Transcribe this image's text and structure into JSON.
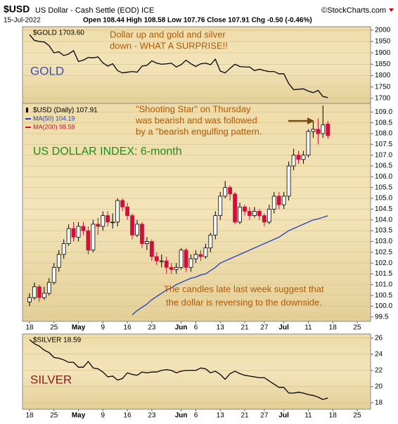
{
  "header": {
    "symbol": "$USD",
    "name": "US Dollar - Cash Settle (EOD) ICE",
    "source": "©StockCharts.com",
    "date": "15-Jul-2022",
    "quote": "Open 108.44 High 108.58 Low 107.76 Close 107.91 Chg -0.50 (-0.46%)"
  },
  "chart_data": [
    {
      "type": "line",
      "legend": "$GOLD 1703.60",
      "label": "GOLD",
      "annotation": [
        "Dollar up and gold and silver",
        "down - WHAT A SURPRISE!!"
      ],
      "color": "#000000",
      "values": [
        1980,
        1955,
        1950,
        1948,
        1932,
        1900,
        1905,
        1888,
        1895,
        1910,
        1862,
        1868,
        1880,
        1878,
        1882,
        1856,
        1842,
        1852,
        1822,
        1812,
        1815,
        1818,
        1815,
        1842,
        1845,
        1865,
        1855,
        1850,
        1852,
        1855,
        1838,
        1848,
        1868,
        1852,
        1840,
        1852,
        1855,
        1848,
        1872,
        1820,
        1812,
        1832,
        1850,
        1840,
        1838,
        1838,
        1822,
        1828,
        1822,
        1818,
        1818,
        1808,
        1808,
        1765,
        1738,
        1740,
        1742,
        1732,
        1725,
        1735,
        1708,
        1703.6,
        null,
        null,
        null,
        null,
        null,
        null,
        null,
        null
      ],
      "ylim": [
        1678,
        2015
      ],
      "yticks": [
        1700,
        1750,
        1800,
        1850,
        1900,
        1950,
        2000
      ],
      "grid": true
    },
    {
      "type": "candlestick",
      "title": "$USD (Daily) 107.91",
      "label": "US DOLLAR INDEX: 6-month",
      "annotation": [
        "\"Shooting Star\" on Thursday",
        "was bearish and was followed",
        "by a \"bearish engulfing pattern."
      ],
      "note": [
        "The candles late last week suggest that",
        "the dollar is reversing to the downside."
      ],
      "categories": [
        "18",
        null,
        null,
        null,
        null,
        "25",
        null,
        null,
        null,
        null,
        "May",
        null,
        null,
        null,
        null,
        "9",
        null,
        null,
        null,
        null,
        "16",
        null,
        null,
        null,
        null,
        "23",
        null,
        null,
        null,
        null,
        null,
        "Jun",
        null,
        null,
        "6",
        null,
        null,
        null,
        null,
        "13",
        null,
        null,
        null,
        null,
        "21",
        null,
        null,
        null,
        "27",
        null,
        null,
        null,
        "Jul",
        null,
        null,
        null,
        null,
        "11",
        null,
        null,
        null,
        null,
        "18",
        null,
        null,
        null,
        null,
        "25",
        null,
        null
      ],
      "open": [
        100.2,
        100.4,
        100.9,
        100.4,
        100.6,
        101.1,
        101.8,
        102.4,
        102.9,
        103.6,
        103.2,
        103.7,
        103.5,
        102.6,
        103.8,
        103.7,
        104.2,
        103.9,
        103.9,
        104.9,
        104.6,
        104.2,
        103.3,
        103.8,
        102.9,
        103.0,
        102.3,
        102.1,
        102.1,
        101.8,
        101.7,
        101.8,
        102.6,
        101.8,
        102.2,
        102.4,
        102.3,
        102.7,
        103.3,
        104.2,
        105.1,
        105.5,
        105.2,
        103.9,
        104.6,
        104.4,
        104.2,
        104.4,
        104.2,
        103.9,
        104.5,
        105.1,
        104.7,
        105.1,
        106.5,
        107.0,
        106.8,
        107.0,
        108.1,
        108.2,
        108.0,
        108.44,
        null,
        null,
        null,
        null,
        null,
        null,
        null,
        null
      ],
      "high": [
        100.6,
        101.1,
        101.0,
        100.9,
        101.3,
        102.0,
        102.6,
        103.1,
        103.8,
        103.9,
        103.9,
        103.9,
        103.7,
        104.0,
        104.1,
        104.4,
        104.4,
        104.3,
        105.0,
        105.0,
        104.8,
        104.3,
        104.0,
        103.9,
        103.2,
        103.1,
        102.5,
        102.4,
        102.3,
        102.0,
        102.0,
        102.7,
        102.7,
        102.4,
        102.6,
        102.6,
        102.9,
        103.4,
        104.4,
        105.3,
        105.8,
        105.6,
        105.3,
        104.8,
        104.7,
        104.6,
        104.6,
        104.5,
        104.3,
        104.7,
        105.3,
        105.3,
        105.3,
        106.7,
        107.3,
        107.2,
        107.2,
        108.2,
        108.6,
        108.7,
        109.3,
        108.58,
        null,
        null,
        null,
        null,
        null,
        null,
        null,
        null
      ],
      "low": [
        100.0,
        100.3,
        100.2,
        100.3,
        100.5,
        101.0,
        101.6,
        102.2,
        102.8,
        103.0,
        103.0,
        103.3,
        102.4,
        102.5,
        103.3,
        103.5,
        103.7,
        103.6,
        103.7,
        104.4,
        104.0,
        103.1,
        103.2,
        102.7,
        102.6,
        102.1,
        101.9,
        101.8,
        101.5,
        101.5,
        101.5,
        101.7,
        101.6,
        101.6,
        102.0,
        102.1,
        102.2,
        102.5,
        103.1,
        104.0,
        105.0,
        104.9,
        103.8,
        103.8,
        104.2,
        104.0,
        104.1,
        104.0,
        103.7,
        103.8,
        104.3,
        104.5,
        104.5,
        104.9,
        106.3,
        106.6,
        106.6,
        106.9,
        107.8,
        107.5,
        107.8,
        107.76,
        null,
        null,
        null,
        null,
        null,
        null,
        null,
        null
      ],
      "close": [
        100.4,
        100.9,
        100.4,
        100.6,
        101.1,
        101.8,
        102.4,
        102.9,
        103.6,
        103.2,
        103.7,
        103.5,
        102.6,
        103.8,
        103.7,
        104.2,
        103.9,
        103.9,
        104.9,
        104.6,
        104.2,
        103.3,
        103.8,
        102.9,
        103.0,
        102.3,
        102.1,
        102.1,
        101.8,
        101.7,
        101.8,
        102.6,
        101.8,
        102.2,
        102.4,
        102.3,
        102.7,
        103.3,
        104.2,
        105.1,
        105.5,
        105.2,
        103.9,
        104.6,
        104.4,
        104.2,
        104.4,
        104.2,
        103.9,
        104.5,
        105.1,
        104.7,
        105.1,
        106.5,
        107.0,
        106.8,
        107.0,
        108.1,
        108.2,
        108.0,
        108.4,
        107.91,
        null,
        null,
        null,
        null,
        null,
        null,
        null,
        null
      ],
      "up_color": "#ffffff",
      "down_color": "#d0103a",
      "series": [
        {
          "name": "MA(50) 104.19",
          "color": "#1f3fbf",
          "values": [
            null,
            null,
            null,
            null,
            null,
            null,
            null,
            null,
            null,
            null,
            null,
            null,
            null,
            null,
            null,
            null,
            null,
            null,
            null,
            null,
            null,
            99.6,
            99.8,
            99.95,
            100.1,
            100.3,
            100.45,
            100.6,
            100.75,
            100.85,
            101.0,
            101.1,
            101.2,
            101.3,
            101.35,
            101.45,
            101.5,
            101.65,
            101.8,
            102.0,
            102.1,
            102.2,
            102.3,
            102.4,
            102.5,
            102.6,
            102.7,
            102.8,
            102.9,
            103.0,
            103.1,
            103.2,
            103.35,
            103.5,
            103.6,
            103.7,
            103.8,
            103.9,
            104.0,
            104.05,
            104.12,
            104.19,
            null,
            null,
            null,
            null,
            null,
            null,
            null,
            null
          ]
        }
      ],
      "ma200": {
        "name": "MA(200) 98.59",
        "color": "#d0103a"
      },
      "ylim": [
        99.3,
        109.4
      ],
      "yticks": [
        99.5,
        {
          "value": 100,
          "label": "100.0"
        },
        100.5,
        {
          "value": 101,
          "label": "101.0"
        },
        101.5,
        {
          "value": 102,
          "label": "102.0"
        },
        102.5,
        {
          "value": 103,
          "label": "103.0"
        },
        103.5,
        {
          "value": 104,
          "label": "104.0"
        },
        104.5,
        {
          "value": 105,
          "label": "105.0"
        },
        105.5,
        {
          "value": 106,
          "label": "106.0"
        },
        106.5,
        {
          "value": 107,
          "label": "107.0"
        },
        107.5,
        {
          "value": 108,
          "label": "108.0"
        },
        108.5,
        {
          "value": 109,
          "label": "109.0"
        }
      ],
      "grid": true
    },
    {
      "type": "line",
      "legend": "$SILVER 18.59",
      "label": "SILVER",
      "color": "#000000",
      "categories": [
        "18",
        null,
        null,
        null,
        null,
        "25",
        null,
        null,
        null,
        null,
        "May",
        null,
        null,
        null,
        null,
        "9",
        null,
        null,
        null,
        null,
        "16",
        null,
        null,
        null,
        null,
        "23",
        null,
        null,
        null,
        null,
        null,
        "Jun",
        null,
        null,
        "6",
        null,
        null,
        null,
        null,
        "13",
        null,
        null,
        null,
        null,
        "21",
        null,
        null,
        null,
        "27",
        null,
        null,
        null,
        "Jul",
        null,
        null,
        null,
        null,
        "11",
        null,
        null,
        null,
        null,
        "18",
        null,
        null,
        null,
        null,
        "25",
        null,
        null
      ],
      "values": [
        25.8,
        25.3,
        25.0,
        24.5,
        24.2,
        23.6,
        23.5,
        23.3,
        23.0,
        23.0,
        22.4,
        22.4,
        23.1,
        22.3,
        22.2,
        21.8,
        21.2,
        21.3,
        20.8,
        21.0,
        21.7,
        21.5,
        21.4,
        21.8,
        21.7,
        21.8,
        21.8,
        22.0,
        22.1,
        22.0,
        21.7,
        21.9,
        22.0,
        22.0,
        22.0,
        22.3,
        22.2,
        21.7,
        21.9,
        21.5,
        20.9,
        21.6,
        21.9,
        21.6,
        21.4,
        21.3,
        21.2,
        21.1,
        21.1,
        20.7,
        20.3,
        19.9,
        19.9,
        19.2,
        19.2,
        19.3,
        19.2,
        19.0,
        18.9,
        18.7,
        18.4,
        18.59,
        null,
        null,
        null,
        null,
        null,
        null,
        null,
        null
      ],
      "ylim": [
        17.2,
        26.5
      ],
      "yticks": [
        18,
        20,
        22,
        24,
        26
      ],
      "grid": true
    }
  ]
}
